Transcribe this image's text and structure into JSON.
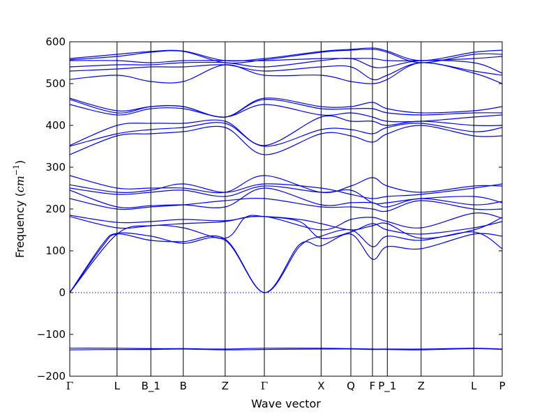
{
  "chart_data": {
    "type": "line",
    "title": "",
    "xlabel": "Wave vector",
    "ylabel_prefix": "Frequency (",
    "ylabel_unit": "cm",
    "ylabel_exp": "−1",
    "ylabel_suffix": ")",
    "ylim": [
      -200,
      600
    ],
    "xlim": [
      0,
      16
    ],
    "yticks": [
      -200,
      -100,
      0,
      100,
      200,
      300,
      400,
      500,
      600
    ],
    "ytick_labels": [
      "−200",
      "−100",
      "0",
      "100",
      "200",
      "300",
      "400",
      "500",
      "600"
    ],
    "high_symmetry_points": [
      {
        "label": "Γ",
        "x": 0,
        "math": true
      },
      {
        "label": "L",
        "x": 1.75,
        "math": false
      },
      {
        "label": "B_1",
        "x": 3.0,
        "math": false
      },
      {
        "label": "B",
        "x": 4.2,
        "math": false
      },
      {
        "label": "Z",
        "x": 5.75,
        "math": false
      },
      {
        "label": "Γ",
        "x": 7.2,
        "math": true
      },
      {
        "label": "X",
        "x": 9.3,
        "math": false
      },
      {
        "label": "Q",
        "x": 10.4,
        "math": false
      },
      {
        "label": "F",
        "x": 11.2,
        "math": false
      },
      {
        "label": "P_1",
        "x": 11.75,
        "math": false
      },
      {
        "label": "Z",
        "x": 13.0,
        "math": false
      },
      {
        "label": "L",
        "x": 14.95,
        "math": false
      },
      {
        "label": "P",
        "x": 16.0,
        "math": false
      }
    ],
    "zero_line": 0,
    "grid": false,
    "series_color": "#0000ff",
    "zero_line_color": "#0000ff",
    "series": [
      {
        "x": [
          0,
          1.75,
          3.0,
          4.2,
          5.75,
          7.2,
          9.3,
          10.4,
          11.2,
          11.75,
          13.0,
          14.95,
          16.0
        ],
        "values": [
          -133,
          -133,
          -134,
          -134,
          -135,
          -133,
          -133,
          -134,
          -135,
          -135,
          -135,
          -133,
          -135
        ]
      },
      {
        "x": [
          0,
          1.75,
          3.0,
          4.2,
          5.75,
          7.2,
          9.3,
          10.4,
          11.2,
          11.75,
          13.0,
          14.95,
          16.0
        ],
        "values": [
          -137,
          -136,
          -136,
          -135,
          -137,
          -136,
          -135,
          -135,
          -136,
          -136,
          -137,
          -134,
          -136
        ]
      },
      {
        "x": [
          0,
          1.2,
          1.75,
          3.0,
          4.2,
          5.75,
          7.2,
          8.5,
          9.3,
          10.4,
          11.2,
          11.75,
          13.0,
          14.95,
          16.0
        ],
        "values": [
          0,
          110,
          140,
          125,
          122,
          128,
          0,
          110,
          135,
          150,
          110,
          135,
          125,
          145,
          105
        ]
      },
      {
        "x": [
          0,
          1.2,
          1.75,
          3.0,
          4.2,
          5.75,
          7.2,
          8.5,
          9.3,
          10.4,
          11.2,
          11.75,
          13.0,
          14.95,
          16.0
        ],
        "values": [
          0,
          115,
          142,
          135,
          118,
          125,
          0,
          115,
          112,
          140,
          80,
          110,
          105,
          140,
          135
        ]
      },
      {
        "x": [
          0,
          1.75,
          3.0,
          4.2,
          5.75,
          6.5,
          7.2,
          8.5,
          9.3,
          10.4,
          11.2,
          11.75,
          13.0,
          14.95,
          16.0
        ],
        "values": [
          0,
          140,
          160,
          155,
          130,
          180,
          182,
          170,
          130,
          145,
          165,
          150,
          140,
          155,
          170
        ]
      },
      {
        "x": [
          0,
          1.75,
          3.0,
          4.2,
          5.75,
          6.5,
          7.2,
          8.5,
          9.3,
          10.4,
          11.2,
          11.75,
          13.0,
          14.95,
          16.0
        ],
        "values": [
          182,
          155,
          160,
          165,
          170,
          180,
          182,
          175,
          165,
          150,
          160,
          165,
          130,
          150,
          180
        ]
      },
      {
        "x": [
          0,
          1.75,
          3.0,
          4.2,
          5.75,
          7.2,
          9.3,
          10.4,
          11.2,
          11.75,
          13.0,
          14.95,
          16.0
        ],
        "values": [
          185,
          168,
          170,
          175,
          172,
          182,
          150,
          175,
          180,
          170,
          155,
          190,
          178
        ]
      },
      {
        "x": [
          0,
          1.75,
          3.0,
          4.2,
          5.75,
          7.2,
          9.3,
          10.4,
          11.2,
          11.75,
          13.0,
          14.95,
          16.0
        ],
        "values": [
          225,
          200,
          205,
          210,
          220,
          225,
          205,
          205,
          200,
          195,
          220,
          200,
          200
        ]
      },
      {
        "x": [
          0,
          1.75,
          3.0,
          4.2,
          5.75,
          7.2,
          9.3,
          10.4,
          11.2,
          11.75,
          13.0,
          14.95,
          16.0
        ],
        "values": [
          245,
          205,
          208,
          210,
          205,
          250,
          210,
          215,
          215,
          205,
          225,
          210,
          218
        ]
      },
      {
        "x": [
          0,
          1.75,
          3.0,
          4.2,
          5.75,
          7.2,
          9.3,
          10.4,
          11.2,
          11.75,
          13.0,
          14.95,
          16.0
        ],
        "values": [
          250,
          235,
          240,
          245,
          230,
          255,
          240,
          245,
          215,
          215,
          225,
          230,
          215
        ]
      },
      {
        "x": [
          0,
          1.75,
          3.0,
          4.2,
          5.75,
          7.2,
          9.3,
          10.4,
          11.2,
          11.75,
          13.0,
          14.95,
          16.0
        ],
        "values": [
          258,
          240,
          245,
          260,
          240,
          260,
          250,
          235,
          225,
          230,
          235,
          250,
          260
        ]
      },
      {
        "x": [
          0,
          1.75,
          3.0,
          4.2,
          5.75,
          7.2,
          9.3,
          10.4,
          11.2,
          11.75,
          13.0,
          14.95,
          16.0
        ],
        "values": [
          280,
          250,
          250,
          250,
          240,
          280,
          240,
          255,
          275,
          255,
          240,
          255,
          255
        ]
      },
      {
        "x": [
          0,
          1.75,
          3.0,
          4.2,
          5.75,
          7.2,
          9.3,
          10.4,
          11.2,
          11.75,
          13.0,
          14.95,
          16.0
        ],
        "values": [
          330,
          375,
          380,
          385,
          395,
          330,
          380,
          375,
          360,
          380,
          400,
          375,
          375
        ]
      },
      {
        "x": [
          0,
          1.75,
          3.0,
          4.2,
          5.75,
          7.2,
          9.3,
          10.4,
          11.2,
          11.75,
          13.0,
          14.95,
          16.0
        ],
        "values": [
          350,
          380,
          390,
          395,
          405,
          350,
          390,
          390,
          380,
          395,
          405,
          385,
          395
        ]
      },
      {
        "x": [
          0,
          1.75,
          3.0,
          4.2,
          5.75,
          7.2,
          9.3,
          10.4,
          11.2,
          11.75,
          13.0,
          14.95,
          16.0
        ],
        "values": [
          352,
          400,
          405,
          405,
          410,
          352,
          420,
          410,
          410,
          400,
          410,
          400,
          400
        ]
      },
      {
        "x": [
          0,
          1.75,
          3.0,
          4.2,
          5.75,
          7.2,
          9.3,
          10.4,
          11.2,
          11.75,
          13.0,
          14.95,
          16.0
        ],
        "values": [
          450,
          425,
          440,
          440,
          420,
          450,
          425,
          430,
          420,
          410,
          410,
          420,
          425
        ]
      },
      {
        "x": [
          0,
          1.75,
          3.0,
          4.2,
          5.75,
          7.2,
          9.3,
          10.4,
          11.2,
          11.75,
          13.0,
          14.95,
          16.0
        ],
        "values": [
          462,
          430,
          445,
          445,
          420,
          462,
          440,
          440,
          440,
          430,
          425,
          430,
          430
        ]
      },
      {
        "x": [
          0,
          1.75,
          3.0,
          4.2,
          5.75,
          7.2,
          9.3,
          10.4,
          11.2,
          11.75,
          13.0,
          14.95,
          16.0
        ],
        "values": [
          465,
          435,
          445,
          445,
          420,
          465,
          445,
          445,
          455,
          440,
          430,
          435,
          445
        ]
      },
      {
        "x": [
          0,
          1.75,
          3.0,
          4.2,
          5.75,
          7.2,
          9.3,
          10.4,
          11.2,
          11.75,
          13.0,
          14.95,
          16.0
        ],
        "values": [
          510,
          520,
          505,
          505,
          545,
          520,
          520,
          505,
          500,
          510,
          550,
          525,
          500
        ]
      },
      {
        "x": [
          0,
          1.75,
          3.0,
          4.2,
          5.75,
          7.2,
          9.3,
          10.4,
          11.2,
          11.75,
          13.0,
          14.95,
          16.0
        ],
        "values": [
          530,
          535,
          540,
          540,
          545,
          530,
          540,
          540,
          510,
          520,
          550,
          530,
          520
        ]
      },
      {
        "x": [
          0,
          1.75,
          3.0,
          4.2,
          5.75,
          7.2,
          9.3,
          10.4,
          11.2,
          11.75,
          13.0,
          14.95,
          16.0
        ],
        "values": [
          540,
          545,
          545,
          550,
          550,
          540,
          555,
          560,
          540,
          540,
          555,
          550,
          525
        ]
      },
      {
        "x": [
          0,
          1.75,
          3.0,
          4.2,
          5.75,
          7.2,
          9.3,
          10.4,
          11.2,
          11.75,
          13.0,
          14.95,
          16.0
        ],
        "values": [
          555,
          555,
          550,
          555,
          555,
          555,
          560,
          560,
          560,
          555,
          555,
          560,
          565
        ]
      },
      {
        "x": [
          0,
          1.75,
          3.0,
          4.2,
          5.75,
          7.2,
          9.3,
          10.4,
          11.2,
          11.75,
          13.0,
          14.95,
          16.0
        ],
        "values": [
          557,
          565,
          575,
          577,
          550,
          557,
          575,
          580,
          582,
          575,
          550,
          570,
          570
        ]
      },
      {
        "x": [
          0,
          1.75,
          3.0,
          4.2,
          5.75,
          7.2,
          9.3,
          10.4,
          11.2,
          11.75,
          13.0,
          14.95,
          16.0
        ],
        "values": [
          560,
          570,
          577,
          578,
          555,
          560,
          577,
          582,
          585,
          578,
          555,
          575,
          580
        ]
      }
    ]
  }
}
